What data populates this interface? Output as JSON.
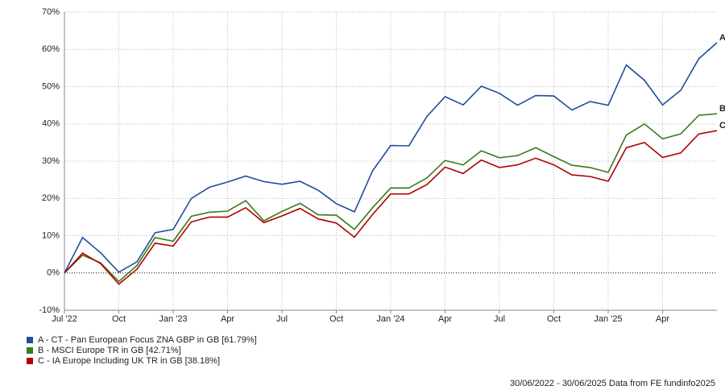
{
  "chart_data": {
    "type": "line",
    "categories": [
      "Jul '22",
      null,
      null,
      "Oct",
      null,
      null,
      "Jan '23",
      null,
      null,
      "Apr",
      null,
      null,
      "Jul",
      null,
      null,
      "Oct",
      null,
      null,
      "Jan '24",
      null,
      null,
      "Apr",
      null,
      null,
      "Jul",
      null,
      null,
      "Oct",
      null,
      null,
      "Jan '25",
      null,
      null,
      "Apr",
      null,
      null,
      null
    ],
    "ylim": [
      -10,
      70
    ],
    "yticks": [
      {
        "value": -10,
        "label": "-10%"
      },
      {
        "value": 0,
        "label": "0%"
      },
      {
        "value": 10,
        "label": "10%"
      },
      {
        "value": 20,
        "label": "20%"
      },
      {
        "value": 30,
        "label": "30%"
      },
      {
        "value": 40,
        "label": "40%"
      },
      {
        "value": 50,
        "label": "50%"
      },
      {
        "value": 60,
        "label": "60%"
      },
      {
        "value": 70,
        "label": "70%"
      }
    ],
    "grid": true,
    "series": [
      {
        "name": "A - CT - Pan European Focus ZNA GBP in GB [61.79%]",
        "label": "A",
        "color": "#1f4e9c",
        "values": [
          0,
          9.5,
          5.4,
          0.2,
          3,
          10.8,
          11.7,
          20,
          23,
          24.4,
          26,
          24.5,
          23.8,
          24.6,
          22.2,
          18.6,
          16.4,
          27.4,
          34.2,
          34.1,
          42,
          47.3,
          45.1,
          50.1,
          48.2,
          45,
          47.6,
          47.5,
          43.7,
          46,
          45,
          55.8,
          51.7,
          45.1,
          49,
          57.5,
          61.79
        ]
      },
      {
        "name": "B - MSCI Europe TR in GB [42.71%]",
        "label": "B",
        "color": "#3a7a1a",
        "values": [
          0,
          4.8,
          2.7,
          -2.3,
          2,
          9.5,
          8.5,
          15.2,
          16.3,
          16.6,
          19.4,
          14,
          16.5,
          18.7,
          15.6,
          15.5,
          11.7,
          17.5,
          22.8,
          22.8,
          25.5,
          30.2,
          29,
          32.8,
          30.9,
          31.5,
          33.6,
          31.2,
          28.9,
          28.3,
          27,
          37,
          40,
          36,
          37.3,
          42.3,
          42.71
        ]
      },
      {
        "name": "C - IA Europe Including UK TR in GB [38.18%]",
        "label": "C",
        "color": "#b00000",
        "values": [
          0,
          5.3,
          2.5,
          -3,
          1,
          8,
          7.2,
          13.7,
          15,
          15,
          17.5,
          13.5,
          15.3,
          17.3,
          14.5,
          13.4,
          9.6,
          15.7,
          21.2,
          21.2,
          23.7,
          28.4,
          26.7,
          30.3,
          28.3,
          29,
          30.8,
          29,
          26.3,
          25.9,
          24.6,
          33.6,
          35,
          31,
          32.2,
          37.3,
          38.18
        ]
      }
    ],
    "footer": "30/06/2022 - 30/06/2025 Data from FE fundinfo2025"
  }
}
